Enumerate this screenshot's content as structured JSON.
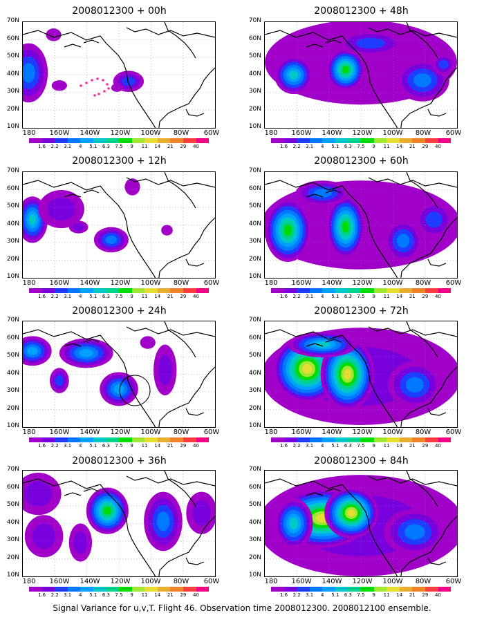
{
  "caption": "Signal Variance for u,v,T. Flight 46. Observation time 2008012300. 2008012100 ensemble.",
  "lat_labels": [
    "70N",
    "60N",
    "50N",
    "40N",
    "30N",
    "20N",
    "10N"
  ],
  "lon_labels": [
    "180",
    "160W",
    "140W",
    "120W",
    "100W",
    "80W",
    "60W"
  ],
  "colorbar": {
    "ticks": [
      "1.6",
      "2.2",
      "3.1",
      "4",
      "5.1",
      "6.3",
      "7.5",
      "9",
      "11",
      "14",
      "21",
      "29",
      "40"
    ],
    "colors": [
      "#a000c8",
      "#7800dc",
      "#1e3cff",
      "#0078ff",
      "#00a0ff",
      "#00c8c8",
      "#00d28c",
      "#00dc00",
      "#a0e632",
      "#e6dc32",
      "#e6af2d",
      "#f08228",
      "#fa3c3c",
      "#f00082"
    ]
  },
  "panels": [
    {
      "title": "2008012300 + 00h",
      "hour": 0
    },
    {
      "title": "2008012300 + 48h",
      "hour": 48
    },
    {
      "title": "2008012300 + 12h",
      "hour": 12
    },
    {
      "title": "2008012300 + 60h",
      "hour": 60
    },
    {
      "title": "2008012300 + 24h",
      "hour": 24
    },
    {
      "title": "2008012300 + 72h",
      "hour": 72
    },
    {
      "title": "2008012300 + 36h",
      "hour": 36
    },
    {
      "title": "2008012300 + 84h",
      "hour": 84
    }
  ]
}
